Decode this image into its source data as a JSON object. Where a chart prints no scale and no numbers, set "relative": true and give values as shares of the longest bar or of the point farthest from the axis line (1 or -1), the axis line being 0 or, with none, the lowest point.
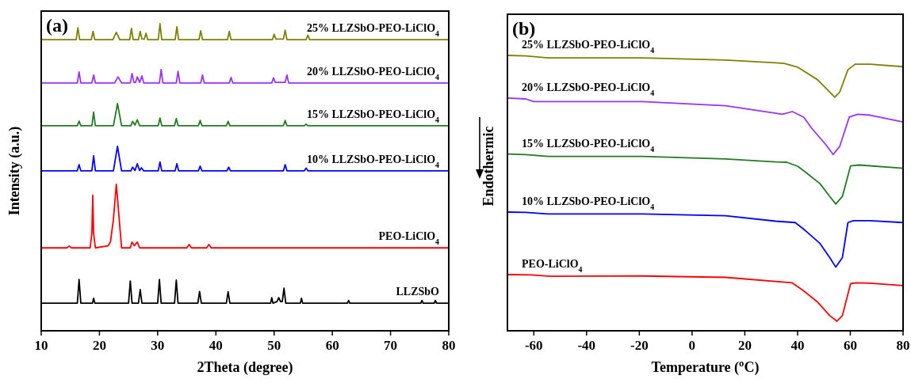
{
  "chart_data": [
    {
      "type": "line",
      "relative": true,
      "xlabel": "2Theta (degree)",
      "ylabel": "Intensity (a.u.)",
      "xlim": [
        10,
        80
      ],
      "xticks": [
        10,
        20,
        30,
        40,
        50,
        60,
        70,
        80
      ],
      "tick_labels": "x",
      "annotations": [
        "(a)"
      ],
      "series": [
        {
          "name": "LLZSbO",
          "color": "#000000",
          "x": [
            10,
            16.2,
            16.5,
            16.8,
            18.8,
            19.0,
            19.2,
            25.0,
            25.3,
            25.6,
            26.7,
            27.0,
            27.3,
            30.0,
            30.3,
            30.6,
            32.9,
            33.2,
            33.5,
            36.9,
            37.2,
            37.5,
            41.8,
            42.1,
            42.4,
            49.4,
            49.6,
            49.8,
            50.5,
            50.8,
            51.1,
            51.4,
            51.7,
            52.0,
            54.5,
            54.7,
            54.9,
            62.6,
            62.8,
            63.0,
            75.2,
            75.4,
            75.6,
            77.5,
            77.7,
            77.9,
            80
          ],
          "values": [
            0.09,
            0.09,
            0.167,
            0.09,
            0.09,
            0.106,
            0.09,
            0.09,
            0.162,
            0.09,
            0.09,
            0.134,
            0.09,
            0.09,
            0.167,
            0.09,
            0.09,
            0.165,
            0.09,
            0.09,
            0.128,
            0.09,
            0.09,
            0.127,
            0.09,
            0.09,
            0.108,
            0.09,
            0.095,
            0.108,
            0.095,
            0.095,
            0.139,
            0.09,
            0.09,
            0.106,
            0.09,
            0.09,
            0.099,
            0.09,
            0.09,
            0.099,
            0.09,
            0.09,
            0.099,
            0.09,
            0.09
          ]
        },
        {
          "name": "PEO-LiClO$_{4}$",
          "color": "#ff0000",
          "x": [
            10,
            14.4,
            14.8,
            15.2,
            18.4,
            18.7,
            18.85,
            19.0,
            19.3,
            21.5,
            21.9,
            22.4,
            22.9,
            23.4,
            23.8,
            25.3,
            25.6,
            26.0,
            26.5,
            26.9,
            35.0,
            35.4,
            35.8,
            38.4,
            38.8,
            39.2,
            80
          ],
          "values": [
            0.27,
            0.27,
            0.276,
            0.27,
            0.27,
            0.318,
            0.441,
            0.318,
            0.27,
            0.277,
            0.29,
            0.363,
            0.477,
            0.363,
            0.27,
            0.27,
            0.289,
            0.277,
            0.289,
            0.27,
            0.27,
            0.281,
            0.27,
            0.27,
            0.281,
            0.27,
            0.27
          ]
        },
        {
          "name": "10% LLZSbO-PEO-LiClO$_{4}$",
          "color": "#0000ff",
          "x": [
            10,
            16.2,
            16.5,
            16.8,
            18.7,
            19.0,
            19.3,
            22.4,
            23.1,
            23.8,
            25.4,
            25.7,
            26.1,
            26.5,
            26.9,
            27.2,
            27.6,
            30.1,
            30.4,
            30.7,
            33.0,
            33.3,
            33.6,
            37.0,
            37.3,
            37.6,
            41.9,
            42.2,
            42.5,
            51.6,
            51.9,
            52.2,
            55.2,
            55.5,
            55.8,
            80
          ],
          "values": [
            0.521,
            0.521,
            0.541,
            0.521,
            0.521,
            0.57,
            0.521,
            0.521,
            0.601,
            0.521,
            0.521,
            0.533,
            0.522,
            0.544,
            0.522,
            0.531,
            0.521,
            0.521,
            0.55,
            0.521,
            0.521,
            0.544,
            0.521,
            0.521,
            0.536,
            0.521,
            0.521,
            0.533,
            0.521,
            0.521,
            0.541,
            0.521,
            0.521,
            0.53,
            0.521,
            0.521
          ]
        },
        {
          "name": "15% LLZSbO-PEO-LiClO$_{4}$",
          "color": "#1e7d1e",
          "x": [
            10,
            16.2,
            16.5,
            16.8,
            18.7,
            19.0,
            19.3,
            22.4,
            23.1,
            23.8,
            25.4,
            25.7,
            26.1,
            26.5,
            26.9,
            30.1,
            30.4,
            30.7,
            32.9,
            33.2,
            33.5,
            37.0,
            37.3,
            37.6,
            41.8,
            42.1,
            42.4,
            51.6,
            51.9,
            52.2,
            55.2,
            55.5,
            55.8,
            80
          ],
          "values": [
            0.668,
            0.668,
            0.683,
            0.668,
            0.668,
            0.712,
            0.668,
            0.668,
            0.74,
            0.668,
            0.668,
            0.682,
            0.67,
            0.687,
            0.668,
            0.668,
            0.693,
            0.668,
            0.668,
            0.691,
            0.668,
            0.668,
            0.685,
            0.668,
            0.668,
            0.682,
            0.668,
            0.668,
            0.685,
            0.668,
            0.668,
            0.673,
            0.668,
            0.668
          ]
        },
        {
          "name": "20% LLZSbO-PEO-LiClO$_{4}$",
          "color": "#9b30ff",
          "x": [
            10,
            16.2,
            16.5,
            16.8,
            18.7,
            19.0,
            19.3,
            22.6,
            23.2,
            23.8,
            25.3,
            25.6,
            25.9,
            26.2,
            26.5,
            26.9,
            27.3,
            27.6,
            30.3,
            30.6,
            30.9,
            33.2,
            33.5,
            33.8,
            37.4,
            37.7,
            38.0,
            42.3,
            42.6,
            42.9,
            49.6,
            49.9,
            50.2,
            51.9,
            52.2,
            52.5,
            80
          ],
          "values": [
            0.807,
            0.807,
            0.843,
            0.807,
            0.807,
            0.833,
            0.807,
            0.807,
            0.827,
            0.807,
            0.807,
            0.838,
            0.809,
            0.809,
            0.827,
            0.809,
            0.83,
            0.807,
            0.807,
            0.851,
            0.807,
            0.807,
            0.845,
            0.807,
            0.807,
            0.833,
            0.807,
            0.807,
            0.825,
            0.807,
            0.807,
            0.824,
            0.809,
            0.809,
            0.833,
            0.807,
            0.807
          ]
        },
        {
          "name": "25% LLZSbO-PEO-LiClO$_{4}$",
          "color": "#808000",
          "x": [
            10,
            16.0,
            16.3,
            16.6,
            18.6,
            18.9,
            19.2,
            22.3,
            22.9,
            23.5,
            25.2,
            25.5,
            25.8,
            26.7,
            27.0,
            27.3,
            27.7,
            28.0,
            28.3,
            30.1,
            30.4,
            30.7,
            33.0,
            33.3,
            33.6,
            37.1,
            37.4,
            37.7,
            42.0,
            42.3,
            42.6,
            49.7,
            50.0,
            50.3,
            51.6,
            51.9,
            52.2,
            55.5,
            55.8,
            56.1,
            80
          ],
          "values": [
            0.948,
            0.948,
            0.987,
            0.948,
            0.948,
            0.975,
            0.948,
            0.948,
            0.972,
            0.948,
            0.948,
            0.985,
            0.948,
            0.948,
            0.975,
            0.95,
            0.95,
            0.969,
            0.948,
            0.948,
            1.0,
            0.948,
            0.948,
            0.99,
            0.948,
            0.948,
            0.977,
            0.948,
            0.948,
            0.975,
            0.948,
            0.948,
            0.966,
            0.95,
            0.95,
            0.979,
            0.948,
            0.948,
            0.963,
            0.948,
            0.948
          ]
        }
      ]
    },
    {
      "type": "line",
      "relative": true,
      "xlabel": "Temperature ($^{o}$C)",
      "ylabel": "Endothermic",
      "xlim": [
        -70,
        80
      ],
      "xticks": [
        -60,
        -40,
        -20,
        0,
        20,
        40,
        60,
        80
      ],
      "tick_labels": "x",
      "annotations": [
        "(b)"
      ],
      "series": [
        {
          "name": "PEO-LiClO$_{4}$",
          "color": "#ff0000",
          "x": [
            -70,
            -61.0,
            -53.7,
            -18.9,
            12.7,
            38.0,
            42.2,
            47.5,
            52.2,
            54.9,
            57.0,
            60.1,
            62.2,
            67.5,
            80
          ],
          "values": [
            0.204,
            0.203,
            0.198,
            0.199,
            0.194,
            0.174,
            0.146,
            0.105,
            0.055,
            0.035,
            0.055,
            0.171,
            0.174,
            0.173,
            0.164
          ]
        },
        {
          "name": "10% LLZSbO-PEO-LiClO$_{4}$",
          "color": "#0000ff",
          "x": [
            -70,
            -63.1,
            -54.7,
            -18.9,
            12.7,
            31.7,
            39.1,
            42.2,
            48.5,
            52.2,
            54.5,
            57.0,
            59.1,
            61.2,
            67.5,
            80
          ],
          "values": [
            0.431,
            0.43,
            0.424,
            0.424,
            0.418,
            0.398,
            0.393,
            0.37,
            0.317,
            0.266,
            0.231,
            0.266,
            0.393,
            0.4,
            0.4,
            0.393
          ]
        },
        {
          "name": "15% LLZSbO-PEO-LiClO$_{4}$",
          "color": "#1e7d1e",
          "x": [
            -70,
            -63.1,
            -54.7,
            -18.9,
            12.7,
            31.7,
            35.9,
            40.1,
            43.3,
            48.5,
            52.2,
            54.5,
            57.0,
            60.1,
            63.3,
            80
          ],
          "values": [
            0.642,
            0.64,
            0.633,
            0.633,
            0.624,
            0.613,
            0.612,
            0.597,
            0.574,
            0.534,
            0.488,
            0.46,
            0.488,
            0.599,
            0.602,
            0.59
          ]
        },
        {
          "name": "20% LLZSbO-PEO-LiClO$_{4}$",
          "color": "#9b30ff",
          "x": [
            -70,
            -63.1,
            -60,
            -18.9,
            12.7,
            34.3,
            38.0,
            42.3,
            45.4,
            50.7,
            53.5,
            56.0,
            59.6,
            62.8,
            67.5,
            80
          ],
          "values": [
            0.845,
            0.842,
            0.832,
            0.832,
            0.817,
            0.786,
            0.796,
            0.776,
            0.735,
            0.676,
            0.64,
            0.67,
            0.776,
            0.786,
            0.783,
            0.758
          ]
        },
        {
          "name": "25% LLZSbO-PEO-LiClO$_{4}$",
          "color": "#808000",
          "x": [
            -70,
            -63.1,
            -54.7,
            -18.9,
            12.7,
            31.7,
            34.9,
            40.1,
            47.5,
            51.7,
            54.1,
            56.0,
            59.1,
            61.8,
            67.5,
            80
          ],
          "values": [
            1.0,
            0.998,
            0.991,
            0.991,
            0.983,
            0.973,
            0.971,
            0.957,
            0.912,
            0.872,
            0.848,
            0.867,
            0.948,
            0.968,
            0.968,
            0.959
          ]
        }
      ]
    }
  ]
}
